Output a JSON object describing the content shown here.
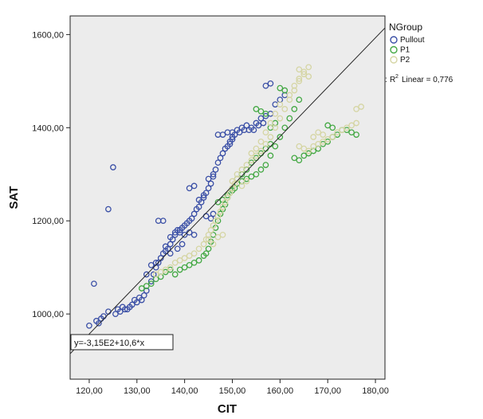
{
  "chart_data": {
    "type": "scatter",
    "xlabel": "CIT",
    "ylabel": "SAT",
    "xlim": [
      116,
      182
    ],
    "ylim": [
      860,
      1640
    ],
    "xticks": [
      120,
      130,
      140,
      150,
      160,
      170,
      180
    ],
    "xtick_labels": [
      "120,00",
      "130,00",
      "140,00",
      "150,00",
      "160,00",
      "170,00",
      "180,00"
    ],
    "yticks": [
      1000,
      1200,
      1400,
      1600
    ],
    "ytick_labels": [
      "1000,00",
      "1200,00",
      "1400,00",
      "1600,00"
    ],
    "grid": false,
    "legend": {
      "title": "NGroup",
      "placement": "right",
      "entries": [
        {
          "name": "Pullout",
          "color": "#3a4fa6"
        },
        {
          "name": "P1",
          "color": "#43a843"
        },
        {
          "name": "P2",
          "color": "#d5d5a3"
        }
      ],
      "r2_label": "Linear = 0,776"
    },
    "fit_line": {
      "intercept": -315,
      "slope": 10.6,
      "label": "y=-3,15E2+10,6*x"
    },
    "colors": {
      "plot_background": "#ececec",
      "fit_line": "#222222"
    },
    "series": [
      {
        "name": "Pullout",
        "points": [
          [
            120,
            975
          ],
          [
            121,
            1065
          ],
          [
            121.5,
            985
          ],
          [
            122,
            980
          ],
          [
            122.5,
            990
          ],
          [
            123,
            995
          ],
          [
            124,
            1005
          ],
          [
            124,
            1225
          ],
          [
            125,
            1315
          ],
          [
            126,
            1010
          ],
          [
            127,
            1015
          ],
          [
            128,
            1010
          ],
          [
            129,
            1020
          ],
          [
            130,
            1025
          ],
          [
            131,
            1030
          ],
          [
            131.5,
            1040
          ],
          [
            132,
            1050
          ],
          [
            133,
            1070
          ],
          [
            133.5,
            1085
          ],
          [
            134,
            1100
          ],
          [
            134.5,
            1110
          ],
          [
            135,
            1120
          ],
          [
            135.5,
            1130
          ],
          [
            136,
            1135
          ],
          [
            136.5,
            1140
          ],
          [
            137,
            1150
          ],
          [
            137.5,
            1160
          ],
          [
            138,
            1170
          ],
          [
            138.5,
            1180
          ],
          [
            139,
            1175
          ],
          [
            139.5,
            1185
          ],
          [
            140,
            1190
          ],
          [
            140.5,
            1195
          ],
          [
            141,
            1200
          ],
          [
            141.5,
            1205
          ],
          [
            142,
            1215
          ],
          [
            142.5,
            1225
          ],
          [
            143,
            1230
          ],
          [
            143.5,
            1240
          ],
          [
            144,
            1250
          ],
          [
            144.5,
            1260
          ],
          [
            145,
            1270
          ],
          [
            145.5,
            1280
          ],
          [
            146,
            1295
          ],
          [
            146.5,
            1310
          ],
          [
            147,
            1325
          ],
          [
            147.5,
            1335
          ],
          [
            148,
            1345
          ],
          [
            148.5,
            1355
          ],
          [
            149,
            1360
          ],
          [
            149.5,
            1370
          ],
          [
            150,
            1380
          ],
          [
            150.5,
            1385
          ],
          [
            151,
            1395
          ],
          [
            152,
            1400
          ],
          [
            153,
            1405
          ],
          [
            154,
            1400
          ],
          [
            155,
            1410
          ],
          [
            156,
            1420
          ],
          [
            157,
            1425
          ],
          [
            158,
            1430
          ],
          [
            159,
            1450
          ],
          [
            160,
            1460
          ],
          [
            161,
            1470
          ],
          [
            134.5,
            1200
          ],
          [
            135.5,
            1200
          ],
          [
            137,
            1165
          ],
          [
            138,
            1175
          ],
          [
            139,
            1180
          ],
          [
            140,
            1170
          ],
          [
            141,
            1175
          ],
          [
            142,
            1170
          ],
          [
            141,
            1270
          ],
          [
            142,
            1275
          ],
          [
            145,
            1290
          ],
          [
            146,
            1300
          ],
          [
            147,
            1385
          ],
          [
            148,
            1385
          ],
          [
            149,
            1390
          ],
          [
            150,
            1390
          ],
          [
            157,
            1490
          ],
          [
            158,
            1495
          ],
          [
            144.5,
            1210
          ],
          [
            145.5,
            1205
          ],
          [
            146,
            1215
          ],
          [
            134,
            1110
          ],
          [
            133,
            1105
          ],
          [
            132,
            1085
          ],
          [
            130.5,
            1035
          ],
          [
            129.5,
            1030
          ],
          [
            128.5,
            1015
          ],
          [
            127.5,
            1010
          ],
          [
            126.5,
            1005
          ],
          [
            125.5,
            1000
          ],
          [
            136,
            1145
          ],
          [
            137,
            1130
          ],
          [
            138.5,
            1140
          ],
          [
            139.5,
            1150
          ],
          [
            143,
            1245
          ],
          [
            144,
            1255
          ],
          [
            149.5,
            1365
          ],
          [
            150,
            1375
          ],
          [
            151.5,
            1390
          ],
          [
            152.5,
            1395
          ],
          [
            153.5,
            1395
          ],
          [
            154.5,
            1395
          ],
          [
            155.5,
            1405
          ],
          [
            156.5,
            1410
          ]
        ]
      },
      {
        "name": "P1",
        "points": [
          [
            131,
            1055
          ],
          [
            132,
            1060
          ],
          [
            133,
            1065
          ],
          [
            134,
            1075
          ],
          [
            135,
            1080
          ],
          [
            136,
            1090
          ],
          [
            137,
            1095
          ],
          [
            138,
            1085
          ],
          [
            139,
            1095
          ],
          [
            140,
            1100
          ],
          [
            141,
            1105
          ],
          [
            142,
            1110
          ],
          [
            143,
            1115
          ],
          [
            144,
            1125
          ],
          [
            144.5,
            1130
          ],
          [
            145,
            1140
          ],
          [
            145.5,
            1155
          ],
          [
            146,
            1170
          ],
          [
            146.5,
            1185
          ],
          [
            147,
            1200
          ],
          [
            147.5,
            1215
          ],
          [
            148,
            1225
          ],
          [
            148.5,
            1235
          ],
          [
            149,
            1250
          ],
          [
            149.5,
            1260
          ],
          [
            150,
            1265
          ],
          [
            150.5,
            1270
          ],
          [
            151,
            1280
          ],
          [
            152,
            1285
          ],
          [
            153,
            1290
          ],
          [
            154,
            1295
          ],
          [
            155,
            1300
          ],
          [
            156,
            1310
          ],
          [
            157,
            1320
          ],
          [
            158,
            1340
          ],
          [
            159,
            1360
          ],
          [
            160,
            1380
          ],
          [
            161,
            1400
          ],
          [
            162,
            1420
          ],
          [
            163,
            1440
          ],
          [
            164,
            1460
          ],
          [
            160,
            1485
          ],
          [
            161,
            1480
          ],
          [
            155,
            1440
          ],
          [
            156,
            1435
          ],
          [
            157,
            1430
          ],
          [
            158,
            1400
          ],
          [
            159,
            1410
          ],
          [
            163,
            1335
          ],
          [
            164,
            1330
          ],
          [
            165,
            1340
          ],
          [
            166,
            1345
          ],
          [
            167,
            1350
          ],
          [
            168,
            1355
          ],
          [
            169,
            1365
          ],
          [
            170,
            1370
          ],
          [
            171,
            1380
          ],
          [
            172,
            1385
          ],
          [
            173,
            1395
          ],
          [
            174,
            1395
          ],
          [
            175,
            1390
          ],
          [
            176,
            1385
          ],
          [
            170,
            1405
          ],
          [
            171,
            1400
          ],
          [
            147,
            1240
          ],
          [
            148,
            1245
          ],
          [
            149,
            1255
          ],
          [
            150,
            1270
          ],
          [
            151,
            1290
          ],
          [
            152,
            1300
          ],
          [
            153,
            1310
          ],
          [
            154,
            1325
          ],
          [
            155,
            1335
          ],
          [
            156,
            1345
          ],
          [
            157,
            1355
          ],
          [
            158,
            1365
          ]
        ]
      },
      {
        "name": "P2",
        "points": [
          [
            134,
            1085
          ],
          [
            135,
            1090
          ],
          [
            136,
            1095
          ],
          [
            137,
            1100
          ],
          [
            138,
            1110
          ],
          [
            139,
            1115
          ],
          [
            140,
            1120
          ],
          [
            141,
            1125
          ],
          [
            142,
            1130
          ],
          [
            143,
            1140
          ],
          [
            144,
            1150
          ],
          [
            144.5,
            1160
          ],
          [
            145,
            1170
          ],
          [
            145.5,
            1180
          ],
          [
            146,
            1190
          ],
          [
            146.5,
            1200
          ],
          [
            147,
            1210
          ],
          [
            147.5,
            1220
          ],
          [
            148,
            1230
          ],
          [
            148.5,
            1240
          ],
          [
            149,
            1250
          ],
          [
            149.5,
            1260
          ],
          [
            150,
            1270
          ],
          [
            150.5,
            1280
          ],
          [
            151,
            1300
          ],
          [
            152,
            1310
          ],
          [
            153,
            1320
          ],
          [
            154,
            1330
          ],
          [
            155,
            1340
          ],
          [
            156,
            1350
          ],
          [
            157,
            1365
          ],
          [
            158,
            1380
          ],
          [
            159,
            1400
          ],
          [
            160,
            1420
          ],
          [
            161,
            1440
          ],
          [
            162,
            1460
          ],
          [
            163,
            1480
          ],
          [
            164,
            1500
          ],
          [
            165,
            1515
          ],
          [
            166,
            1530
          ],
          [
            164,
            1525
          ],
          [
            165,
            1520
          ],
          [
            166,
            1510
          ],
          [
            164,
            1360
          ],
          [
            165,
            1355
          ],
          [
            166,
            1350
          ],
          [
            167,
            1360
          ],
          [
            168,
            1365
          ],
          [
            169,
            1370
          ],
          [
            170,
            1375
          ],
          [
            171,
            1380
          ],
          [
            172,
            1390
          ],
          [
            173,
            1395
          ],
          [
            174,
            1400
          ],
          [
            175,
            1405
          ],
          [
            176,
            1410
          ],
          [
            176,
            1440
          ],
          [
            177,
            1445
          ],
          [
            145,
            1160
          ],
          [
            146,
            1150
          ],
          [
            147,
            1165
          ],
          [
            148,
            1170
          ],
          [
            150,
            1285
          ],
          [
            151,
            1290
          ],
          [
            152,
            1275
          ],
          [
            153,
            1285
          ],
          [
            154,
            1345
          ],
          [
            155,
            1355
          ],
          [
            156,
            1370
          ],
          [
            157,
            1390
          ],
          [
            158,
            1410
          ],
          [
            159,
            1430
          ],
          [
            160,
            1450
          ],
          [
            162,
            1470
          ],
          [
            163,
            1490
          ],
          [
            164,
            1505
          ],
          [
            167,
            1380
          ],
          [
            168,
            1390
          ],
          [
            169,
            1385
          ]
        ]
      }
    ]
  }
}
